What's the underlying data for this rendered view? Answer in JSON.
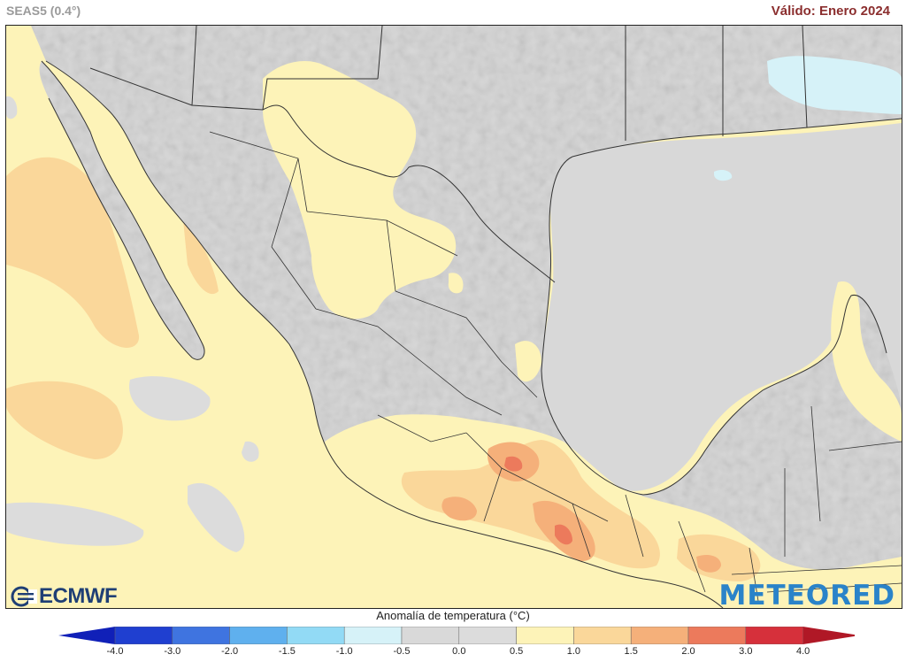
{
  "header": {
    "model": "SEAS5 (0.4°)",
    "valid": "Válido: Enero 2024"
  },
  "map": {
    "region": "México",
    "variable": "Anomalía de temperatura (°C)"
  },
  "logos": {
    "left": "ECMWF",
    "right": "METEORED"
  },
  "legend": {
    "title": "Anomalía de temperatura (°C)",
    "ticks": [
      "-4.0",
      "-3.0",
      "-2.0",
      "-1.5",
      "-1.0",
      "-0.5",
      "0.0",
      "0.5",
      "1.0",
      "1.5",
      "2.0",
      "3.0",
      "4.0"
    ],
    "colors": [
      "#1f3fd0",
      "#3f74e0",
      "#5fb0ee",
      "#92daf5",
      "#d6f2f8",
      "#d9d9d9",
      "#dcdcdc",
      "#fdf3b8",
      "#fad79a",
      "#f5b07a",
      "#ec7a5c",
      "#d6303b"
    ],
    "end_low_color": "#1020b8",
    "end_high_color": "#b01826"
  },
  "colors": {
    "ocean_neutral": "#fdf3b8",
    "land_neutral": "#d8d8d8",
    "warm_light": "#fad79a",
    "warm_mid": "#f5b07a",
    "warm_strong": "#ec7a5c",
    "cool_light": "#d6f2f8",
    "border": "#333333"
  }
}
